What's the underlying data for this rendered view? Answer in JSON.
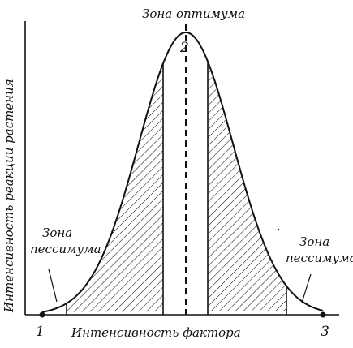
{
  "diagram": {
    "y_axis_label": "Интенсивность реакции растения",
    "x_axis_label": "Интенсивность фактора",
    "zone_optimum": "Зона оптимума",
    "zone_pessimum_left": [
      "Зона",
      "пессимума"
    ],
    "zone_pessimum_right": [
      "Зона",
      "пессимума"
    ],
    "points": {
      "p1": "1",
      "p2": "2",
      "p3": "3"
    },
    "colors": {
      "ink": "#111111",
      "background": "#ffffff"
    }
  }
}
